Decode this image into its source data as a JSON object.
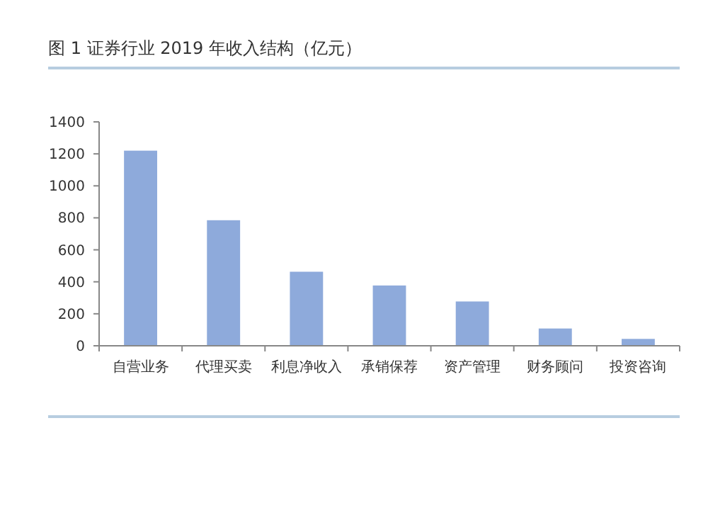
{
  "chart_data": {
    "type": "bar",
    "title": "图 1 证券行业 2019 年收入结构（亿元）",
    "categories": [
      "自营业务",
      "代理买卖",
      "利息净收入",
      "承销保荐",
      "资产管理",
      "财务顾问",
      "投资咨询"
    ],
    "values": [
      1220,
      785,
      463,
      377,
      277,
      108,
      43
    ],
    "color": "#8eaadb",
    "ylim": [
      0,
      1400
    ],
    "yticks": [
      0,
      200,
      400,
      600,
      800,
      1000,
      1200,
      1400
    ],
    "grid": false
  }
}
